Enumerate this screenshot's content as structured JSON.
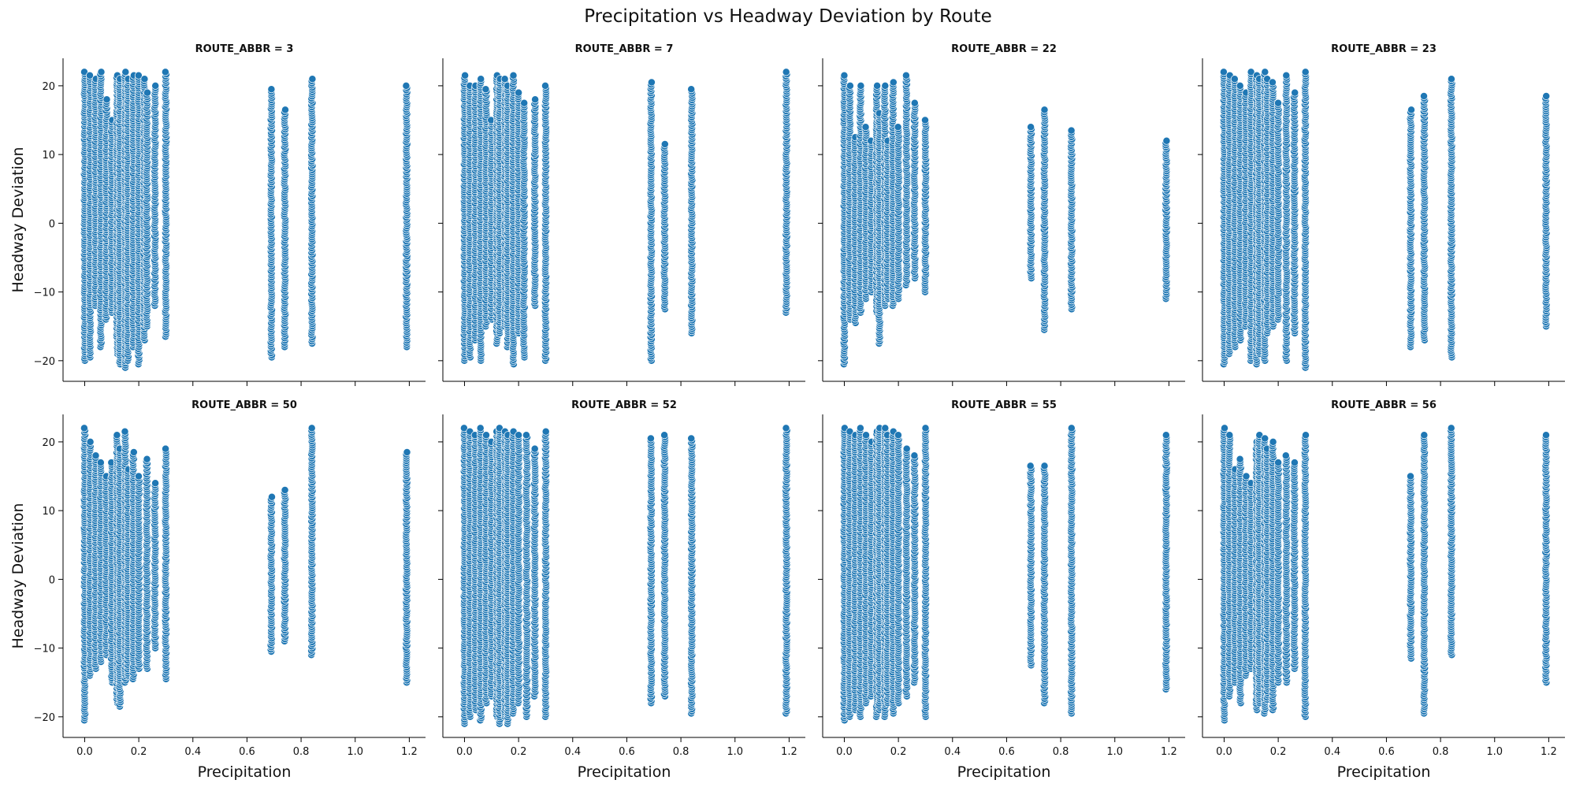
{
  "figure": {
    "title": "Precipitation vs Headway Deviation by Route"
  },
  "chart_data": {
    "type": "scatter",
    "layout": "facet-grid",
    "xlabel": "Precipitation",
    "ylabel": "Headway Deviation",
    "xlim": [
      -0.08,
      1.26
    ],
    "ylim": [
      -23,
      24
    ],
    "x_ticks": [
      0.0,
      0.2,
      0.4,
      0.6,
      0.8,
      1.0,
      1.2
    ],
    "x_tick_labels": [
      "0.0",
      "0.2",
      "0.4",
      "0.6",
      "0.8",
      "1.0",
      "1.2"
    ],
    "y_ticks": [
      -20,
      -10,
      0,
      10,
      20
    ],
    "y_tick_labels": [
      "−20",
      "−10",
      "0",
      "10",
      "20"
    ],
    "grid": false,
    "marker_color": "#1f77b4",
    "marker_edge_color": "#ffffff",
    "panels": [
      {
        "title": "ROUTE_ABBR = 3",
        "points": [
          {
            "x": 0.0,
            "y": [
              -20,
              22
            ]
          },
          {
            "x": 0.02,
            "y": [
              -19.5,
              21.5
            ]
          },
          {
            "x": 0.04,
            "y": [
              -12,
              21
            ]
          },
          {
            "x": 0.06,
            "y": [
              -18,
              22
            ]
          },
          {
            "x": 0.08,
            "y": [
              -14,
              18
            ]
          },
          {
            "x": 0.1,
            "y": [
              -13,
              15
            ]
          },
          {
            "x": 0.12,
            "y": [
              -19,
              21.5
            ]
          },
          {
            "x": 0.13,
            "y": [
              -20.5,
              21
            ]
          },
          {
            "x": 0.15,
            "y": [
              -21,
              22
            ]
          },
          {
            "x": 0.16,
            "y": [
              -20,
              21
            ]
          },
          {
            "x": 0.18,
            "y": [
              -18,
              21.5
            ]
          },
          {
            "x": 0.2,
            "y": [
              -20.5,
              21.5
            ]
          },
          {
            "x": 0.22,
            "y": [
              -17,
              21
            ]
          },
          {
            "x": 0.23,
            "y": [
              -15,
              19
            ]
          },
          {
            "x": 0.26,
            "y": [
              -12,
              20
            ]
          },
          {
            "x": 0.3,
            "y": [
              -16.5,
              22
            ]
          },
          {
            "x": 0.69,
            "y": [
              -19.5,
              19.5
            ]
          },
          {
            "x": 0.74,
            "y": [
              -18,
              16.5
            ]
          },
          {
            "x": 0.84,
            "y": [
              -17.5,
              21
            ]
          },
          {
            "x": 1.19,
            "y": [
              -18,
              20
            ]
          }
        ]
      },
      {
        "title": "ROUTE_ABBR = 7",
        "points": [
          {
            "x": 0.0,
            "y": [
              -20,
              21.5
            ]
          },
          {
            "x": 0.02,
            "y": [
              -19.5,
              20
            ]
          },
          {
            "x": 0.04,
            "y": [
              -17,
              20
            ]
          },
          {
            "x": 0.06,
            "y": [
              -20,
              21
            ]
          },
          {
            "x": 0.08,
            "y": [
              -15,
              19.5
            ]
          },
          {
            "x": 0.1,
            "y": [
              -14,
              15
            ]
          },
          {
            "x": 0.12,
            "y": [
              -17.5,
              21.5
            ]
          },
          {
            "x": 0.13,
            "y": [
              -16,
              21
            ]
          },
          {
            "x": 0.15,
            "y": [
              -15,
              21
            ]
          },
          {
            "x": 0.16,
            "y": [
              -18,
              20
            ]
          },
          {
            "x": 0.18,
            "y": [
              -20.5,
              21.5
            ]
          },
          {
            "x": 0.2,
            "y": [
              -16,
              19
            ]
          },
          {
            "x": 0.22,
            "y": [
              -19.5,
              17.5
            ]
          },
          {
            "x": 0.26,
            "y": [
              -12,
              18
            ]
          },
          {
            "x": 0.3,
            "y": [
              -20,
              20
            ]
          },
          {
            "x": 0.69,
            "y": [
              -20,
              20.5
            ]
          },
          {
            "x": 0.74,
            "y": [
              -12.5,
              11.5
            ]
          },
          {
            "x": 0.84,
            "y": [
              -16,
              19.5
            ]
          },
          {
            "x": 1.19,
            "y": [
              -13,
              22
            ]
          }
        ]
      },
      {
        "title": "ROUTE_ABBR = 22",
        "points": [
          {
            "x": 0.0,
            "y": [
              -20.5,
              21.5
            ]
          },
          {
            "x": 0.02,
            "y": [
              -14,
              20
            ]
          },
          {
            "x": 0.04,
            "y": [
              -14.5,
              12.5
            ]
          },
          {
            "x": 0.06,
            "y": [
              -13,
              20
            ]
          },
          {
            "x": 0.08,
            "y": [
              -11,
              14
            ]
          },
          {
            "x": 0.1,
            "y": [
              -10,
              12
            ]
          },
          {
            "x": 0.12,
            "y": [
              -13,
              20
            ]
          },
          {
            "x": 0.13,
            "y": [
              -17.5,
              16
            ]
          },
          {
            "x": 0.15,
            "y": [
              -12,
              20
            ]
          },
          {
            "x": 0.16,
            "y": [
              -11,
              12
            ]
          },
          {
            "x": 0.18,
            "y": [
              -12,
              20.5
            ]
          },
          {
            "x": 0.2,
            "y": [
              -11,
              14
            ]
          },
          {
            "x": 0.23,
            "y": [
              -9,
              21.5
            ]
          },
          {
            "x": 0.26,
            "y": [
              -8,
              17.5
            ]
          },
          {
            "x": 0.3,
            "y": [
              -10,
              15
            ]
          },
          {
            "x": 0.69,
            "y": [
              -8,
              14
            ]
          },
          {
            "x": 0.74,
            "y": [
              -15.5,
              16.5
            ]
          },
          {
            "x": 0.84,
            "y": [
              -12.5,
              13.5
            ]
          },
          {
            "x": 1.19,
            "y": [
              -11,
              12
            ]
          }
        ]
      },
      {
        "title": "ROUTE_ABBR = 23",
        "points": [
          {
            "x": 0.0,
            "y": [
              -20.5,
              22
            ]
          },
          {
            "x": 0.02,
            "y": [
              -19,
              21.5
            ]
          },
          {
            "x": 0.04,
            "y": [
              -18,
              21
            ]
          },
          {
            "x": 0.06,
            "y": [
              -17,
              20
            ]
          },
          {
            "x": 0.08,
            "y": [
              -15,
              19
            ]
          },
          {
            "x": 0.1,
            "y": [
              -20,
              22
            ]
          },
          {
            "x": 0.12,
            "y": [
              -20.5,
              21.5
            ]
          },
          {
            "x": 0.13,
            "y": [
              -19,
              21
            ]
          },
          {
            "x": 0.15,
            "y": [
              -20,
              22
            ]
          },
          {
            "x": 0.16,
            "y": [
              -16,
              21
            ]
          },
          {
            "x": 0.18,
            "y": [
              -15,
              20.5
            ]
          },
          {
            "x": 0.2,
            "y": [
              -14,
              17.5
            ]
          },
          {
            "x": 0.23,
            "y": [
              -20,
              21.5
            ]
          },
          {
            "x": 0.26,
            "y": [
              -16,
              19
            ]
          },
          {
            "x": 0.3,
            "y": [
              -21,
              22
            ]
          },
          {
            "x": 0.69,
            "y": [
              -18,
              16.5
            ]
          },
          {
            "x": 0.74,
            "y": [
              -17,
              18.5
            ]
          },
          {
            "x": 0.84,
            "y": [
              -19.5,
              21
            ]
          },
          {
            "x": 1.19,
            "y": [
              -15,
              18.5
            ]
          }
        ]
      },
      {
        "title": "ROUTE_ABBR = 50",
        "points": [
          {
            "x": 0.0,
            "y": [
              -20.5,
              22
            ]
          },
          {
            "x": 0.02,
            "y": [
              -14,
              20
            ]
          },
          {
            "x": 0.04,
            "y": [
              -13,
              18
            ]
          },
          {
            "x": 0.06,
            "y": [
              -12,
              17
            ]
          },
          {
            "x": 0.08,
            "y": [
              -11,
              15
            ]
          },
          {
            "x": 0.1,
            "y": [
              -15,
              17
            ]
          },
          {
            "x": 0.12,
            "y": [
              -18,
              21
            ]
          },
          {
            "x": 0.13,
            "y": [
              -18.5,
              19
            ]
          },
          {
            "x": 0.15,
            "y": [
              -15,
              21.5
            ]
          },
          {
            "x": 0.16,
            "y": [
              -14,
              16
            ]
          },
          {
            "x": 0.18,
            "y": [
              -14.5,
              18.5
            ]
          },
          {
            "x": 0.2,
            "y": [
              -13,
              15
            ]
          },
          {
            "x": 0.23,
            "y": [
              -13,
              17.5
            ]
          },
          {
            "x": 0.26,
            "y": [
              -10,
              14
            ]
          },
          {
            "x": 0.3,
            "y": [
              -14.5,
              19
            ]
          },
          {
            "x": 0.69,
            "y": [
              -10.5,
              12
            ]
          },
          {
            "x": 0.74,
            "y": [
              -9,
              13
            ]
          },
          {
            "x": 0.84,
            "y": [
              -11,
              22
            ]
          },
          {
            "x": 1.19,
            "y": [
              -15,
              18.5
            ]
          }
        ]
      },
      {
        "title": "ROUTE_ABBR = 52",
        "points": [
          {
            "x": 0.0,
            "y": [
              -21,
              22
            ]
          },
          {
            "x": 0.02,
            "y": [
              -20,
              21.5
            ]
          },
          {
            "x": 0.04,
            "y": [
              -19,
              21
            ]
          },
          {
            "x": 0.06,
            "y": [
              -20.5,
              22
            ]
          },
          {
            "x": 0.08,
            "y": [
              -18,
              21
            ]
          },
          {
            "x": 0.1,
            "y": [
              -17,
              20
            ]
          },
          {
            "x": 0.12,
            "y": [
              -20,
              21.5
            ]
          },
          {
            "x": 0.13,
            "y": [
              -21,
              22
            ]
          },
          {
            "x": 0.15,
            "y": [
              -20,
              21.5
            ]
          },
          {
            "x": 0.16,
            "y": [
              -21,
              21
            ]
          },
          {
            "x": 0.18,
            "y": [
              -19.5,
              21.5
            ]
          },
          {
            "x": 0.2,
            "y": [
              -18,
              21
            ]
          },
          {
            "x": 0.23,
            "y": [
              -20,
              21
            ]
          },
          {
            "x": 0.26,
            "y": [
              -17,
              19
            ]
          },
          {
            "x": 0.3,
            "y": [
              -20,
              21.5
            ]
          },
          {
            "x": 0.69,
            "y": [
              -18,
              20.5
            ]
          },
          {
            "x": 0.74,
            "y": [
              -17,
              21
            ]
          },
          {
            "x": 0.84,
            "y": [
              -19.5,
              20.5
            ]
          },
          {
            "x": 1.19,
            "y": [
              -19.5,
              22
            ]
          }
        ]
      },
      {
        "title": "ROUTE_ABBR = 55",
        "points": [
          {
            "x": 0.0,
            "y": [
              -20.5,
              22
            ]
          },
          {
            "x": 0.02,
            "y": [
              -20,
              21.5
            ]
          },
          {
            "x": 0.04,
            "y": [
              -19,
              21
            ]
          },
          {
            "x": 0.06,
            "y": [
              -20,
              22
            ]
          },
          {
            "x": 0.08,
            "y": [
              -18,
              21
            ]
          },
          {
            "x": 0.1,
            "y": [
              -17,
              20
            ]
          },
          {
            "x": 0.12,
            "y": [
              -20,
              21.5
            ]
          },
          {
            "x": 0.13,
            "y": [
              -19,
              22
            ]
          },
          {
            "x": 0.15,
            "y": [
              -20,
              22
            ]
          },
          {
            "x": 0.16,
            "y": [
              -18,
              21
            ]
          },
          {
            "x": 0.18,
            "y": [
              -19.5,
              21.5
            ]
          },
          {
            "x": 0.2,
            "y": [
              -18,
              21
            ]
          },
          {
            "x": 0.23,
            "y": [
              -17,
              19
            ]
          },
          {
            "x": 0.26,
            "y": [
              -15,
              18
            ]
          },
          {
            "x": 0.3,
            "y": [
              -20,
              22
            ]
          },
          {
            "x": 0.69,
            "y": [
              -12.5,
              16.5
            ]
          },
          {
            "x": 0.74,
            "y": [
              -18,
              16.5
            ]
          },
          {
            "x": 0.84,
            "y": [
              -19.5,
              22
            ]
          },
          {
            "x": 1.19,
            "y": [
              -16,
              21
            ]
          }
        ]
      },
      {
        "title": "ROUTE_ABBR = 56",
        "points": [
          {
            "x": 0.0,
            "y": [
              -20.5,
              22
            ]
          },
          {
            "x": 0.02,
            "y": [
              -17,
              21
            ]
          },
          {
            "x": 0.04,
            "y": [
              -15,
              16
            ]
          },
          {
            "x": 0.06,
            "y": [
              -18,
              17.5
            ]
          },
          {
            "x": 0.08,
            "y": [
              -14,
              15
            ]
          },
          {
            "x": 0.1,
            "y": [
              -13,
              14
            ]
          },
          {
            "x": 0.12,
            "y": [
              -19,
              20
            ]
          },
          {
            "x": 0.13,
            "y": [
              -18,
              21
            ]
          },
          {
            "x": 0.15,
            "y": [
              -19.5,
              20.5
            ]
          },
          {
            "x": 0.16,
            "y": [
              -17.5,
              19
            ]
          },
          {
            "x": 0.18,
            "y": [
              -19,
              20
            ]
          },
          {
            "x": 0.2,
            "y": [
              -15,
              17
            ]
          },
          {
            "x": 0.23,
            "y": [
              -15,
              18
            ]
          },
          {
            "x": 0.26,
            "y": [
              -13,
              17
            ]
          },
          {
            "x": 0.3,
            "y": [
              -20,
              21
            ]
          },
          {
            "x": 0.69,
            "y": [
              -11.5,
              15
            ]
          },
          {
            "x": 0.74,
            "y": [
              -19.5,
              21
            ]
          },
          {
            "x": 0.84,
            "y": [
              -11,
              22
            ]
          },
          {
            "x": 1.19,
            "y": [
              -15,
              21
            ]
          }
        ]
      }
    ]
  }
}
